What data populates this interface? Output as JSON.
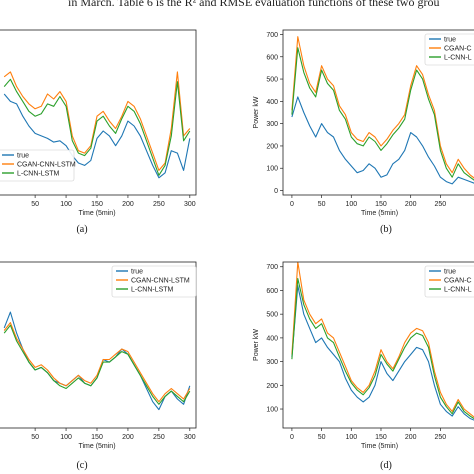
{
  "header_text": "in March. Table 6 is the R² and RMSE evaluation functions of these two grou",
  "chart_data": [
    {
      "type": "line",
      "panel_label": "(a)",
      "xlabel": "Time (5min)",
      "ylabel": "",
      "xlim": [
        -10,
        310
      ],
      "ylim": [
        60,
        730
      ],
      "xticks": [
        50,
        100,
        150,
        200,
        250,
        300
      ],
      "yticks": [],
      "legend_labels": [
        "true",
        "CGAN-CNN-LSTM",
        "L-CNN-LSTM"
      ],
      "series": [
        {
          "name": "true",
          "color": "#1f77b4",
          "x": [
            0,
            10,
            20,
            30,
            40,
            50,
            60,
            70,
            80,
            90,
            100,
            110,
            120,
            130,
            140,
            150,
            160,
            170,
            180,
            190,
            200,
            210,
            220,
            230,
            240,
            250,
            260,
            270,
            280,
            290,
            300
          ],
          "values": [
            470,
            440,
            430,
            380,
            340,
            310,
            300,
            290,
            275,
            280,
            260,
            220,
            190,
            180,
            200,
            290,
            320,
            300,
            260,
            300,
            360,
            340,
            300,
            240,
            180,
            130,
            150,
            240,
            230,
            160,
            290
          ]
        },
        {
          "name": "CGAN-CNN-LSTM",
          "color": "#ff7f0e",
          "x": [
            0,
            10,
            20,
            30,
            40,
            50,
            60,
            70,
            80,
            90,
            100,
            110,
            120,
            130,
            140,
            150,
            160,
            170,
            180,
            190,
            200,
            210,
            220,
            230,
            240,
            250,
            260,
            270,
            280,
            290,
            300
          ],
          "values": [
            540,
            560,
            500,
            460,
            430,
            410,
            420,
            470,
            450,
            480,
            440,
            300,
            240,
            230,
            260,
            380,
            400,
            360,
            330,
            380,
            440,
            420,
            370,
            300,
            230,
            160,
            190,
            330,
            560,
            300,
            330
          ]
        },
        {
          "name": "L-CNN-LSTM",
          "color": "#2ca02c",
          "x": [
            0,
            10,
            20,
            30,
            40,
            50,
            60,
            70,
            80,
            90,
            100,
            110,
            120,
            130,
            140,
            150,
            160,
            170,
            180,
            190,
            200,
            210,
            220,
            230,
            240,
            250,
            260,
            270,
            280,
            290,
            300
          ],
          "values": [
            500,
            530,
            480,
            440,
            400,
            380,
            390,
            430,
            420,
            460,
            420,
            280,
            230,
            220,
            250,
            360,
            380,
            340,
            310,
            370,
            420,
            400,
            350,
            280,
            210,
            140,
            180,
            300,
            520,
            280,
            320
          ]
        }
      ]
    },
    {
      "type": "line",
      "panel_label": "(b)",
      "xlabel": "Time (5min)",
      "ylabel": "Power kW",
      "xlim": [
        -15,
        310
      ],
      "ylim": [
        -20,
        720
      ],
      "xticks": [
        0,
        50,
        100,
        150,
        200,
        250
      ],
      "yticks": [
        0,
        100,
        200,
        300,
        400,
        500,
        600,
        700
      ],
      "legend_labels": [
        "true",
        "CGAN-C",
        "L-CNN-L"
      ],
      "series": [
        {
          "name": "true",
          "color": "#1f77b4",
          "x": [
            0,
            10,
            20,
            30,
            40,
            50,
            60,
            70,
            80,
            90,
            100,
            110,
            120,
            130,
            140,
            150,
            160,
            170,
            180,
            190,
            200,
            210,
            220,
            230,
            240,
            250,
            260,
            270,
            280,
            290,
            300,
            310
          ],
          "values": [
            330,
            420,
            350,
            290,
            240,
            300,
            260,
            240,
            180,
            140,
            110,
            80,
            90,
            120,
            100,
            60,
            70,
            120,
            140,
            180,
            260,
            240,
            200,
            150,
            110,
            60,
            40,
            30,
            60,
            50,
            40,
            30
          ]
        },
        {
          "name": "CGAN-CNN-LSTM",
          "color": "#ff7f0e",
          "x": [
            0,
            10,
            20,
            30,
            40,
            50,
            60,
            70,
            80,
            90,
            100,
            110,
            120,
            130,
            140,
            150,
            160,
            170,
            180,
            190,
            200,
            210,
            220,
            230,
            240,
            250,
            260,
            270,
            280,
            290,
            300,
            310
          ],
          "values": [
            360,
            690,
            560,
            480,
            440,
            560,
            500,
            470,
            380,
            340,
            260,
            230,
            220,
            260,
            240,
            200,
            230,
            270,
            300,
            340,
            470,
            560,
            520,
            430,
            360,
            200,
            120,
            80,
            140,
            100,
            70,
            50
          ]
        },
        {
          "name": "L-CNN-LSTM",
          "color": "#2ca02c",
          "x": [
            0,
            10,
            20,
            30,
            40,
            50,
            60,
            70,
            80,
            90,
            100,
            110,
            120,
            130,
            140,
            150,
            160,
            170,
            180,
            190,
            200,
            210,
            220,
            230,
            240,
            250,
            260,
            270,
            280,
            290,
            300,
            310
          ],
          "values": [
            340,
            640,
            530,
            460,
            420,
            540,
            480,
            450,
            360,
            320,
            240,
            210,
            200,
            240,
            220,
            180,
            210,
            250,
            280,
            320,
            450,
            540,
            500,
            410,
            340,
            180,
            100,
            60,
            120,
            80,
            60,
            40
          ]
        }
      ]
    },
    {
      "type": "line",
      "panel_label": "(c)",
      "xlabel": "Time (5min)",
      "ylabel": "",
      "xlim": [
        -10,
        310
      ],
      "ylim": [
        80,
        710
      ],
      "xticks": [
        50,
        100,
        150,
        200,
        250,
        300
      ],
      "yticks": [],
      "legend_labels": [
        "true",
        "CGAN-CNN-LSTM",
        "L-CNN-LSTM"
      ],
      "series": [
        {
          "name": "true",
          "color": "#1f77b4",
          "x": [
            0,
            10,
            20,
            30,
            40,
            50,
            60,
            70,
            80,
            90,
            100,
            110,
            120,
            130,
            140,
            150,
            160,
            170,
            180,
            190,
            200,
            210,
            220,
            230,
            240,
            250,
            260,
            270,
            280,
            290,
            300
          ],
          "values": [
            460,
            520,
            440,
            380,
            330,
            300,
            310,
            290,
            260,
            250,
            240,
            260,
            280,
            250,
            240,
            270,
            340,
            330,
            350,
            380,
            360,
            320,
            280,
            230,
            180,
            150,
            200,
            220,
            190,
            170,
            240
          ]
        },
        {
          "name": "CGAN-CNN-LSTM",
          "color": "#ff7f0e",
          "x": [
            0,
            10,
            20,
            30,
            40,
            50,
            60,
            70,
            80,
            90,
            100,
            110,
            120,
            130,
            140,
            150,
            160,
            170,
            180,
            190,
            200,
            210,
            220,
            230,
            240,
            250,
            260,
            270,
            280,
            290,
            300
          ],
          "values": [
            450,
            480,
            420,
            380,
            340,
            310,
            320,
            300,
            270,
            250,
            240,
            260,
            280,
            260,
            250,
            280,
            340,
            340,
            360,
            380,
            370,
            330,
            290,
            250,
            210,
            180,
            210,
            230,
            210,
            190,
            230
          ]
        },
        {
          "name": "L-CNN-LSTM",
          "color": "#2ca02c",
          "x": [
            0,
            10,
            20,
            30,
            40,
            50,
            60,
            70,
            80,
            90,
            100,
            110,
            120,
            130,
            140,
            150,
            160,
            170,
            180,
            190,
            200,
            210,
            220,
            230,
            240,
            250,
            260,
            270,
            280,
            290,
            300
          ],
          "values": [
            440,
            470,
            410,
            370,
            330,
            300,
            310,
            290,
            260,
            240,
            230,
            250,
            270,
            250,
            240,
            270,
            330,
            330,
            350,
            370,
            360,
            320,
            280,
            240,
            200,
            170,
            200,
            220,
            200,
            180,
            220
          ]
        }
      ]
    },
    {
      "type": "line",
      "panel_label": "(d)",
      "xlabel": "Time (5min)",
      "ylabel": "Power kW",
      "xlim": [
        -15,
        310
      ],
      "ylim": [
        20,
        720
      ],
      "xticks": [
        0,
        50,
        100,
        150,
        200,
        250
      ],
      "yticks": [
        100,
        200,
        300,
        400,
        500,
        600,
        700
      ],
      "legend_labels": [
        "true",
        "CGAN-C",
        "L-CNN-L"
      ],
      "series": [
        {
          "name": "true",
          "color": "#1f77b4",
          "x": [
            0,
            10,
            20,
            30,
            40,
            50,
            60,
            70,
            80,
            90,
            100,
            110,
            120,
            130,
            140,
            150,
            160,
            170,
            180,
            190,
            200,
            210,
            220,
            230,
            240,
            250,
            260,
            270,
            280,
            290,
            300,
            310
          ],
          "values": [
            320,
            620,
            500,
            440,
            380,
            400,
            360,
            330,
            300,
            230,
            180,
            150,
            130,
            150,
            200,
            300,
            250,
            220,
            260,
            300,
            330,
            360,
            350,
            300,
            200,
            120,
            90,
            70,
            110,
            80,
            60,
            50
          ]
        },
        {
          "name": "CGAN-CNN-LSTM",
          "color": "#ff7f0e",
          "x": [
            0,
            10,
            20,
            30,
            40,
            50,
            60,
            70,
            80,
            90,
            100,
            110,
            120,
            130,
            140,
            150,
            160,
            170,
            180,
            190,
            200,
            210,
            220,
            230,
            240,
            250,
            260,
            270,
            280,
            290,
            300,
            310
          ],
          "values": [
            330,
            720,
            560,
            500,
            460,
            480,
            420,
            400,
            340,
            280,
            220,
            190,
            170,
            200,
            260,
            350,
            300,
            270,
            320,
            380,
            420,
            440,
            430,
            380,
            260,
            170,
            120,
            90,
            140,
            100,
            80,
            60
          ]
        },
        {
          "name": "L-CNN-LSTM",
          "color": "#2ca02c",
          "x": [
            0,
            10,
            20,
            30,
            40,
            50,
            60,
            70,
            80,
            90,
            100,
            110,
            120,
            130,
            140,
            150,
            160,
            170,
            180,
            190,
            200,
            210,
            220,
            230,
            240,
            250,
            260,
            270,
            280,
            290,
            300,
            310
          ],
          "values": [
            310,
            650,
            540,
            480,
            440,
            460,
            400,
            380,
            320,
            260,
            210,
            180,
            160,
            190,
            240,
            330,
            290,
            260,
            310,
            360,
            400,
            420,
            410,
            360,
            240,
            150,
            110,
            80,
            130,
            90,
            70,
            55
          ]
        }
      ]
    }
  ]
}
